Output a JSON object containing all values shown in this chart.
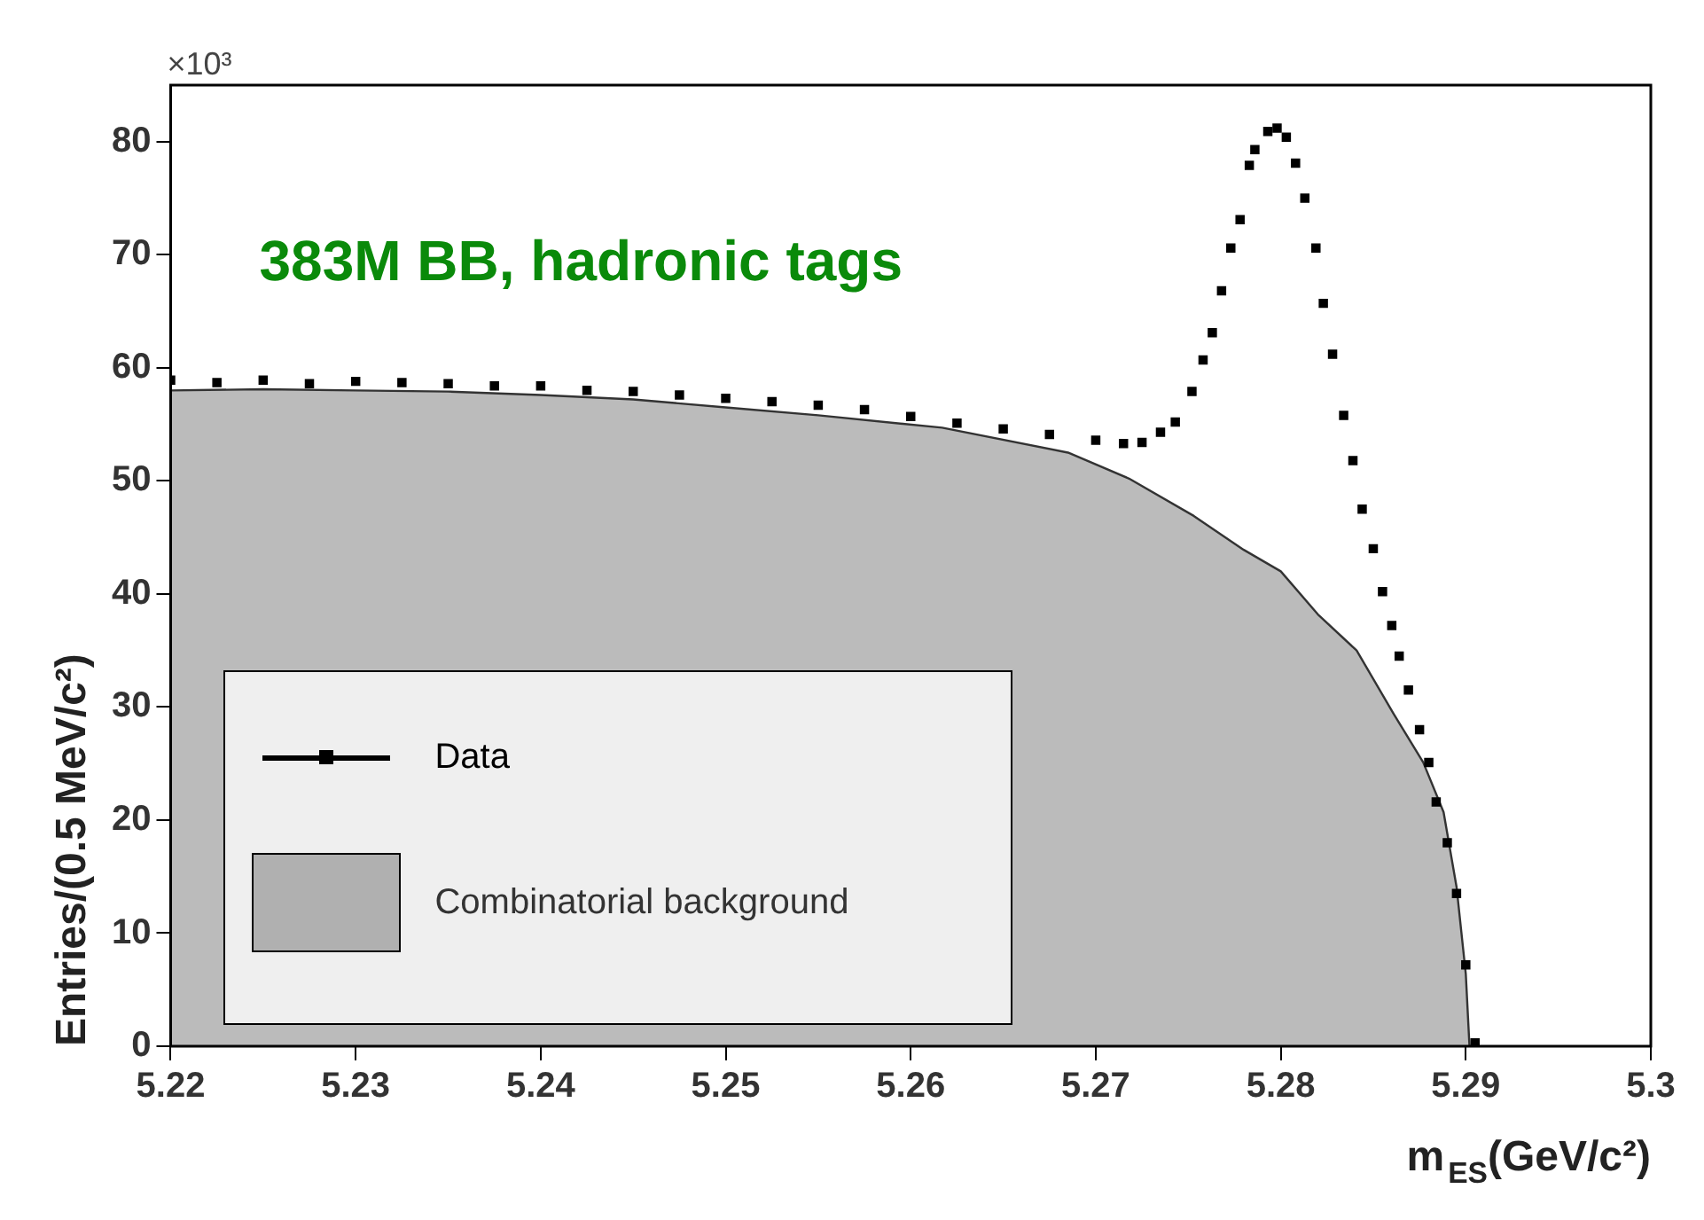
{
  "chart_data": {
    "type": "scatter",
    "xlabel": "m$_{ES}$(GeV/c²)",
    "ylabel": "Entries/(0.5 MeV/c²)",
    "annotations": [
      "×10³",
      "383M BB, hadronic tags"
    ],
    "xlim": [
      5.22,
      5.3
    ],
    "xticks": [
      5.22,
      5.23,
      5.24,
      5.25,
      5.26,
      5.27,
      5.28,
      5.29,
      5.3
    ],
    "ylim": [
      0,
      85
    ],
    "yticks": [
      0,
      10,
      20,
      30,
      40,
      50,
      60,
      70,
      80
    ],
    "grid": false,
    "legend": "bottom left",
    "series": [
      {
        "name": "Data",
        "type": "scatter",
        "marker": "square",
        "color": "#000000",
        "x": [
          5.22,
          5.2225,
          5.225,
          5.2275,
          5.23,
          5.2325,
          5.235,
          5.2375,
          5.24,
          5.2425,
          5.245,
          5.2475,
          5.25,
          5.2525,
          5.255,
          5.2575,
          5.26,
          5.2625,
          5.265,
          5.2675,
          5.27,
          5.2715,
          5.2725,
          5.2735,
          5.2743,
          5.2752,
          5.2758,
          5.2763,
          5.2768,
          5.2773,
          5.2778,
          5.2783,
          5.2786,
          5.2793,
          5.2798,
          5.2803,
          5.2808,
          5.2813,
          5.2819,
          5.2823,
          5.2828,
          5.2834,
          5.2839,
          5.2844,
          5.285,
          5.2855,
          5.286,
          5.2864,
          5.2869,
          5.2875,
          5.288,
          5.2884,
          5.289,
          5.2895,
          5.29,
          5.2905
        ],
        "values": [
          58.9,
          58.7,
          58.9,
          58.6,
          58.8,
          58.7,
          58.6,
          58.4,
          58.4,
          58.0,
          57.9,
          57.6,
          57.3,
          57.0,
          56.7,
          56.3,
          55.7,
          55.1,
          54.6,
          54.1,
          53.6,
          53.3,
          53.4,
          54.3,
          55.2,
          57.9,
          60.7,
          63.1,
          66.8,
          70.6,
          73.1,
          77.9,
          79.3,
          80.9,
          81.2,
          80.4,
          78.1,
          75.0,
          70.6,
          65.7,
          61.2,
          55.8,
          51.8,
          47.5,
          44.0,
          40.2,
          37.2,
          34.5,
          31.5,
          28.0,
          25.1,
          21.6,
          18.0,
          13.5,
          7.2,
          0.3
        ]
      },
      {
        "name": "Combinatorial background",
        "type": "area",
        "color": "#333333",
        "x": [
          5.22,
          5.225,
          5.23,
          5.235,
          5.24,
          5.245,
          5.25,
          5.255,
          5.2617,
          5.2685,
          5.2718,
          5.2753,
          5.278,
          5.28,
          5.282,
          5.2841,
          5.2861,
          5.2877,
          5.2888,
          5.2895,
          5.29,
          5.2902
        ],
        "values": [
          58.0,
          58.1,
          58.0,
          57.9,
          57.6,
          57.2,
          56.5,
          55.8,
          54.7,
          52.5,
          50.2,
          46.9,
          43.9,
          42.0,
          38.2,
          35.0,
          29.4,
          25.1,
          20.7,
          14.1,
          6.4,
          0
        ]
      }
    ]
  }
}
